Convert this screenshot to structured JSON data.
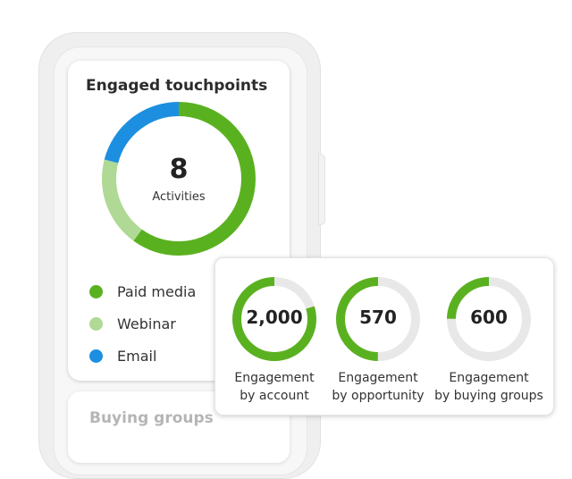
{
  "touchpoints": {
    "title": "Engaged touchpoints",
    "total": "8",
    "total_label": "Activities",
    "segments": [
      {
        "label": "Paid media",
        "fraction": 0.6,
        "color": "#5ab120"
      },
      {
        "label": "Webinar",
        "fraction": 0.19,
        "color": "#afd995"
      },
      {
        "label": "Email",
        "fraction": 0.21,
        "color": "#1d8fe0"
      }
    ]
  },
  "next_card": {
    "title": "Buying groups"
  },
  "engagement": [
    {
      "value": "2,000",
      "line1": "Engagement",
      "line2": "by account",
      "fill": 0.8
    },
    {
      "value": "570",
      "line1": "Engagement",
      "line2": "by opportunity",
      "fill": 0.5
    },
    {
      "value": "600",
      "line1": "Engagement",
      "line2": "by buying groups",
      "fill": 0.25
    }
  ],
  "colors": {
    "fill": "#5ab120",
    "track": "#e8e8e8"
  }
}
